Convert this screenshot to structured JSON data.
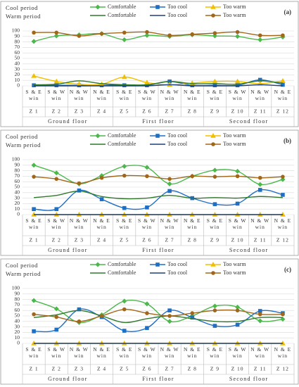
{
  "chart_data": [
    {
      "type": "line",
      "label": "(a)",
      "legend_groups": [
        "Cool period",
        "Warm period"
      ],
      "categories": [
        "S & E win",
        "S & W win",
        "N & W win",
        "N & E win",
        "S & E win",
        "S & W win",
        "N & W win",
        "N & E win",
        "S & E win",
        "S & W win",
        "N & W win",
        "N & E win"
      ],
      "zones": [
        "Z 1",
        "Z 2",
        "Z 3",
        "Z 4",
        "Z 5",
        "Z 6",
        "Z 7",
        "Z 8",
        "Z 9",
        "Z 10",
        "Z 11",
        "Z 12"
      ],
      "groups": [
        "Ground floor",
        "First floor",
        "Second floor"
      ],
      "ylim": [
        0,
        100
      ],
      "yticks": [
        0,
        10,
        20,
        30,
        40,
        50,
        60,
        70,
        80,
        90,
        100
      ],
      "grid": true,
      "series": [
        {
          "name": "Comfortable",
          "color": "#4cb84c",
          "marker": "diamond",
          "values": [
            81,
            91,
            93,
            95,
            84,
            92,
            90,
            93,
            91,
            90,
            84,
            89
          ]
        },
        {
          "name": "Too cool",
          "color": "#1f6fc4",
          "marker": "square",
          "values": [
            1,
            1,
            1,
            1,
            1,
            1,
            8,
            1,
            1,
            1,
            11,
            2
          ]
        },
        {
          "name": "Too warm",
          "color": "#f2bf00",
          "marker": "triangle",
          "values": [
            18,
            8,
            3,
            3,
            16,
            6,
            2,
            5,
            8,
            8,
            4,
            9
          ]
        },
        {
          "name": "Comfortable",
          "color": "#2f7a2a",
          "marker": "none",
          "values": [
            2,
            3,
            9,
            4,
            2,
            2,
            8,
            4,
            4,
            3,
            9,
            5
          ]
        },
        {
          "name": "Too cool",
          "color": "#1f3f78",
          "marker": "none",
          "values": [
            0,
            0,
            0,
            0,
            0,
            0,
            2,
            0,
            0,
            0,
            2,
            0
          ]
        },
        {
          "name": "Too warm",
          "color": "#a0661a",
          "marker": "circle",
          "values": [
            97,
            97,
            91,
            95,
            97,
            98,
            92,
            94,
            96,
            98,
            92,
            92
          ]
        }
      ]
    },
    {
      "type": "line",
      "label": "(b)",
      "legend_groups": [
        "Cool period",
        "Warm period"
      ],
      "categories": [
        "S & E win",
        "S & W win",
        "N & W win",
        "N & E win",
        "S & E win",
        "S & W win",
        "N & W win",
        "N & E win",
        "S & E win",
        "S & W win",
        "N & W win",
        "N & E win"
      ],
      "zones": [
        "Z 1",
        "Z 2",
        "Z 3",
        "Z 4",
        "Z 5",
        "Z 6",
        "Z 7",
        "Z 8",
        "Z 9",
        "Z 10",
        "Z 11",
        "Z 12"
      ],
      "groups": [
        "Ground floor",
        "First floor",
        "Second floor"
      ],
      "ylim": [
        0,
        100
      ],
      "yticks": [
        0,
        10,
        20,
        30,
        40,
        50,
        60,
        70,
        80,
        90,
        100
      ],
      "grid": true,
      "series": [
        {
          "name": "Comfortable",
          "color": "#4cb84c",
          "marker": "diamond",
          "values": [
            90,
            76,
            56,
            71,
            88,
            86,
            56,
            70,
            81,
            79,
            55,
            64
          ]
        },
        {
          "name": "Too cool",
          "color": "#1f6fc4",
          "marker": "square",
          "values": [
            10,
            10,
            44,
            28,
            12,
            13,
            43,
            30,
            19,
            20,
            45,
            36
          ]
        },
        {
          "name": "Too warm",
          "color": "#f2bf00",
          "marker": "triangle",
          "values": [
            0,
            0,
            0,
            0,
            0,
            0,
            0,
            0,
            0,
            0,
            0,
            0
          ]
        },
        {
          "name": "Comfortable",
          "color": "#2f7a2a",
          "marker": "none",
          "values": [
            31,
            35,
            43,
            33,
            29,
            30,
            35,
            30,
            31,
            30,
            33,
            31
          ]
        },
        {
          "name": "Too cool",
          "color": "#1f3f78",
          "marker": "none",
          "values": [
            0,
            0,
            0,
            0,
            0,
            0,
            0,
            0,
            0,
            0,
            0,
            0
          ]
        },
        {
          "name": "Too warm",
          "color": "#a0661a",
          "marker": "circle",
          "values": [
            69,
            65,
            57,
            67,
            71,
            70,
            65,
            70,
            69,
            70,
            67,
            69
          ]
        }
      ]
    },
    {
      "type": "line",
      "label": "(c)",
      "legend_groups": [
        "Cool period",
        "Warm period"
      ],
      "categories": [
        "S & E win",
        "S & W win",
        "N & W win",
        "N & E win",
        "S & E win",
        "S & W win",
        "N & W win",
        "N & E win",
        "S & E win",
        "S & W win",
        "N & W win",
        "N & E win"
      ],
      "zones": [
        "Z 1",
        "Z 2",
        "Z 3",
        "Z 4",
        "Z 5",
        "Z 6",
        "Z 7",
        "Z 8",
        "Z 9",
        "Z 10",
        "Z 11",
        "Z 12"
      ],
      "groups": [
        "Ground floor",
        "First floor",
        "Second floor"
      ],
      "ylim": [
        0,
        100
      ],
      "yticks": [
        0,
        10,
        20,
        30,
        40,
        50,
        60,
        70,
        80,
        90,
        100
      ],
      "grid": true,
      "series": [
        {
          "name": "Comfortable",
          "color": "#4cb84c",
          "marker": "diamond",
          "values": [
            78,
            63,
            38,
            52,
            77,
            72,
            40,
            50,
            68,
            66,
            41,
            44
          ]
        },
        {
          "name": "Too cool",
          "color": "#1f6fc4",
          "marker": "square",
          "values": [
            22,
            25,
            62,
            48,
            23,
            28,
            60,
            47,
            32,
            34,
            59,
            55
          ]
        },
        {
          "name": "Too warm",
          "color": "#f2bf00",
          "marker": "triangle",
          "values": [
            0,
            0,
            0,
            0,
            0,
            0,
            0,
            0,
            0,
            0,
            0,
            0
          ]
        },
        {
          "name": "Comfortable",
          "color": "#2f7a2a",
          "marker": "none",
          "values": [
            47,
            52,
            60,
            50,
            38,
            45,
            50,
            45,
            40,
            40,
            47,
            47
          ]
        },
        {
          "name": "Too cool",
          "color": "#1f3f78",
          "marker": "none",
          "values": [
            0,
            0,
            0,
            0,
            0,
            0,
            0,
            0,
            0,
            0,
            0,
            0
          ]
        },
        {
          "name": "Too warm",
          "color": "#a0661a",
          "marker": "circle",
          "values": [
            53,
            48,
            40,
            50,
            62,
            55,
            50,
            55,
            60,
            60,
            53,
            53
          ]
        }
      ]
    }
  ]
}
